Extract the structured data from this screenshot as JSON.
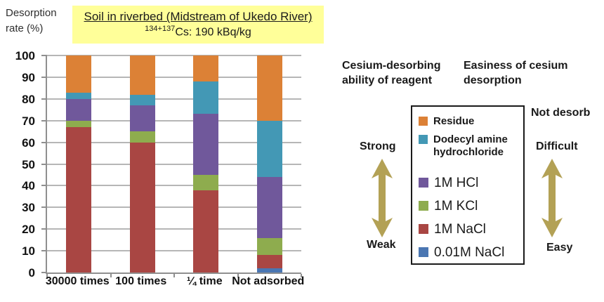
{
  "axis_caption": {
    "line1": "Desorption",
    "line2": "rate (%)"
  },
  "title_box": {
    "line1": "Soil in riverbed (Midstream of Ukedo River)",
    "isotope_sup": "134+137",
    "line2": "Cs: 190 kBq/kg",
    "bg": "#FFFF99"
  },
  "headers": {
    "left_line1": "Cesium-desorbing",
    "left_line2": "ability of reagent",
    "right_line1": "Easiness of cesium",
    "right_line2": "desorption"
  },
  "side_labels": {
    "strong": "Strong",
    "weak": "Weak",
    "not_desorb": "Not desorb",
    "difficult": "Difficult",
    "easy": "Easy"
  },
  "arrow_color": "#B3A155",
  "chart_data": {
    "type": "bar",
    "stacked": true,
    "title": "Soil in riverbed (Midstream of Ukedo River) 134+137Cs: 190 kBq/kg",
    "ylabel": "Desorption rate (%)",
    "xlabel": "",
    "ylim": [
      0,
      100
    ],
    "yticks": [
      0,
      10,
      20,
      30,
      40,
      50,
      60,
      70,
      80,
      90,
      100
    ],
    "grid": true,
    "legend_position": "right",
    "categories": [
      "30000 times",
      "¼ time",
      "100 times",
      "Not adsorbed"
    ],
    "categories_ordered": [
      "30000 times",
      "100 times",
      "¼ time",
      "Not adsorbed"
    ],
    "series": [
      {
        "name": "0.01M NaCl",
        "color": "#4A76B2",
        "values": [
          0,
          0,
          0,
          2
        ]
      },
      {
        "name": "1M NaCl",
        "color": "#A94643",
        "values": [
          67,
          60,
          38,
          6
        ]
      },
      {
        "name": "1M KCl",
        "color": "#8EAC4E",
        "values": [
          3,
          5,
          7,
          8
        ]
      },
      {
        "name": "1M HCl",
        "color": "#70589B",
        "values": [
          10,
          12,
          28,
          28
        ]
      },
      {
        "name": "Dodecyl amine hydrochloride",
        "color": "#4398B5",
        "values": [
          3,
          5,
          15,
          26
        ]
      },
      {
        "name": "Residue",
        "color": "#DC8136",
        "values": [
          17,
          18,
          12,
          30
        ]
      }
    ]
  },
  "legend": {
    "items": [
      {
        "label": "Residue",
        "color": "#DC8136",
        "small": true,
        "lines": [
          "Residue"
        ]
      },
      {
        "label": "Dodecyl amine hydrochloride",
        "color": "#4398B5",
        "small": true,
        "lines": [
          "Dodecyl amine",
          "hydrochloride"
        ]
      },
      {
        "label": "1M HCl",
        "color": "#70589B",
        "small": false,
        "lines": [
          "1M HCl"
        ]
      },
      {
        "label": "1M KCl",
        "color": "#8EAC4E",
        "small": false,
        "lines": [
          "1M KCl"
        ]
      },
      {
        "label": "1M NaCl",
        "color": "#A94643",
        "small": false,
        "lines": [
          "1M NaCl"
        ]
      },
      {
        "label": "0.01M NaCl",
        "color": "#4A76B2",
        "small": false,
        "lines": [
          "0.01M NaCl"
        ]
      }
    ]
  }
}
